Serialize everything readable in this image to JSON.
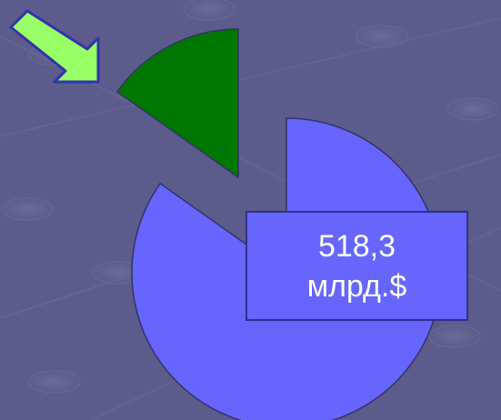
{
  "chart_data": {
    "type": "pie",
    "values": [
      518.3,
      93
    ],
    "value_labels": [
      "518,3\nмлрд.$",
      null
    ],
    "colors": [
      "#6666ff",
      "#007700"
    ]
  }
}
